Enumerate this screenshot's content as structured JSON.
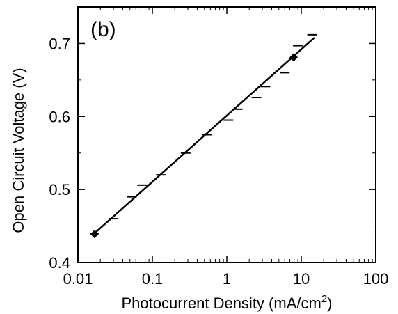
{
  "chart_data": {
    "type": "scatter",
    "panel_label": "(b)",
    "xlabel": "Photocurrent Density (mA/cm",
    "xlabel_superscript": "2",
    "xlabel_suffix": ")",
    "ylabel": "Open Circuit Voltage (V)",
    "x_scale": "log",
    "xlim": [
      0.01,
      100
    ],
    "ylim": [
      0.4,
      0.75
    ],
    "x_ticks": [
      0.01,
      0.1,
      1,
      10,
      100
    ],
    "x_tick_labels": [
      "0.01",
      "0.1",
      "1",
      "10",
      "100"
    ],
    "y_ticks": [
      0.4,
      0.5,
      0.6,
      0.7
    ],
    "y_tick_labels": [
      "0.4",
      "0.5",
      "0.6",
      "0.7"
    ],
    "grid": false,
    "series": [
      {
        "marker": "dash",
        "x": [
          0.0167,
          0.03,
          0.053,
          0.073,
          0.13,
          0.28,
          0.54,
          1.05,
          1.4,
          2.5,
          3.3,
          6.0,
          9.0,
          14.0
        ],
        "y": [
          0.44,
          0.46,
          0.49,
          0.506,
          0.52,
          0.55,
          0.575,
          0.595,
          0.61,
          0.626,
          0.641,
          0.66,
          0.697,
          0.712
        ]
      },
      {
        "marker": "diamond",
        "x": [
          0.0167,
          7.9
        ],
        "y": [
          0.439,
          0.681
        ]
      },
      {
        "style": "fit-line",
        "x": [
          0.0167,
          15.0
        ],
        "y": [
          0.44,
          0.708
        ]
      }
    ]
  }
}
